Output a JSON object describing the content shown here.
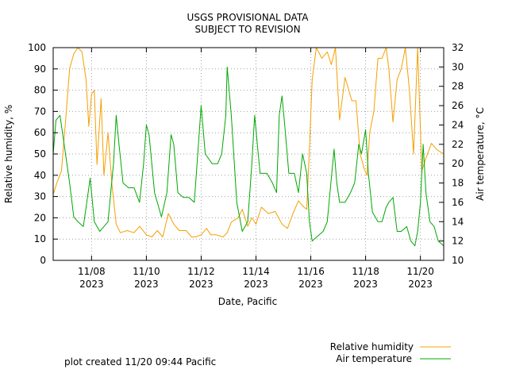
{
  "chart_data": {
    "type": "line",
    "title": "USGS PROVISIONAL DATA",
    "subtitle": "SUBJECT TO REVISION",
    "xlabel": "Date, Pacific",
    "ylabel_left": "Relative humidity, %",
    "ylabel_right": "Air temperature, °C",
    "footer": "plot created 11/20 09:44 Pacific",
    "xlim": [
      6.6,
      20.85
    ],
    "x_ticks": [
      {
        "x": 8,
        "label": "11/08",
        "year": "2023"
      },
      {
        "x": 10,
        "label": "11/10",
        "year": "2023"
      },
      {
        "x": 12,
        "label": "11/12",
        "year": "2023"
      },
      {
        "x": 14,
        "label": "11/14",
        "year": "2023"
      },
      {
        "x": 16,
        "label": "11/16",
        "year": "2023"
      },
      {
        "x": 18,
        "label": "11/18",
        "year": "2023"
      },
      {
        "x": 20,
        "label": "11/20",
        "year": "2023"
      }
    ],
    "ylim_left": [
      0,
      100
    ],
    "yticks_left": [
      0,
      10,
      20,
      30,
      40,
      50,
      60,
      70,
      80,
      90,
      100
    ],
    "ylim_right": [
      10,
      32
    ],
    "yticks_right": [
      10,
      12,
      14,
      16,
      18,
      20,
      22,
      24,
      26,
      28,
      30,
      32
    ],
    "grid": true,
    "legend_position": "bottom-right",
    "series": [
      {
        "name": "Relative humidity",
        "axis": "left",
        "color": "#f5a000",
        "points": [
          [
            6.6,
            31
          ],
          [
            6.75,
            37
          ],
          [
            6.9,
            42
          ],
          [
            7.05,
            65
          ],
          [
            7.2,
            90
          ],
          [
            7.35,
            97
          ],
          [
            7.5,
            100
          ],
          [
            7.65,
            98
          ],
          [
            7.8,
            85
          ],
          [
            7.9,
            63
          ],
          [
            8.0,
            78
          ],
          [
            8.1,
            80
          ],
          [
            8.2,
            45
          ],
          [
            8.35,
            76
          ],
          [
            8.45,
            40
          ],
          [
            8.6,
            60
          ],
          [
            8.75,
            35
          ],
          [
            8.9,
            17
          ],
          [
            9.05,
            13
          ],
          [
            9.3,
            14
          ],
          [
            9.55,
            13
          ],
          [
            9.75,
            16
          ],
          [
            10.0,
            12
          ],
          [
            10.2,
            11
          ],
          [
            10.4,
            14
          ],
          [
            10.6,
            11
          ],
          [
            10.8,
            22
          ],
          [
            11.0,
            17
          ],
          [
            11.2,
            14
          ],
          [
            11.45,
            14
          ],
          [
            11.65,
            11
          ],
          [
            11.8,
            11
          ],
          [
            12.0,
            12
          ],
          [
            12.2,
            15
          ],
          [
            12.35,
            12
          ],
          [
            12.55,
            12
          ],
          [
            12.8,
            11
          ],
          [
            12.95,
            13
          ],
          [
            13.1,
            18
          ],
          [
            13.35,
            20
          ],
          [
            13.5,
            24
          ],
          [
            13.7,
            16
          ],
          [
            13.85,
            20
          ],
          [
            14.0,
            17
          ],
          [
            14.2,
            25
          ],
          [
            14.45,
            22
          ],
          [
            14.7,
            23
          ],
          [
            14.95,
            17
          ],
          [
            15.15,
            15
          ],
          [
            15.35,
            22
          ],
          [
            15.55,
            28
          ],
          [
            15.75,
            25
          ],
          [
            15.85,
            24
          ],
          [
            15.95,
            52
          ],
          [
            16.05,
            85
          ],
          [
            16.2,
            100
          ],
          [
            16.4,
            95
          ],
          [
            16.6,
            98
          ],
          [
            16.75,
            92
          ],
          [
            16.9,
            100
          ],
          [
            17.05,
            66
          ],
          [
            17.25,
            86
          ],
          [
            17.5,
            75
          ],
          [
            17.65,
            75
          ],
          [
            17.8,
            50
          ],
          [
            17.95,
            43
          ],
          [
            18.05,
            40
          ],
          [
            18.15,
            60
          ],
          [
            18.3,
            70
          ],
          [
            18.45,
            95
          ],
          [
            18.6,
            95
          ],
          [
            18.75,
            100
          ],
          [
            18.85,
            90
          ],
          [
            19.0,
            65
          ],
          [
            19.15,
            85
          ],
          [
            19.3,
            90
          ],
          [
            19.45,
            100
          ],
          [
            19.6,
            80
          ],
          [
            19.75,
            50
          ],
          [
            19.9,
            100
          ],
          [
            20.05,
            42
          ],
          [
            20.2,
            48
          ],
          [
            20.4,
            55
          ],
          [
            20.6,
            52
          ],
          [
            20.85,
            50
          ]
        ]
      },
      {
        "name": "Air temperature",
        "axis": "right",
        "color": "#00a800",
        "points": [
          [
            6.6,
            21
          ],
          [
            6.7,
            24.5
          ],
          [
            6.85,
            25
          ],
          [
            7.0,
            22
          ],
          [
            7.2,
            18
          ],
          [
            7.35,
            14.5
          ],
          [
            7.5,
            14
          ],
          [
            7.7,
            13.5
          ],
          [
            7.85,
            16.5
          ],
          [
            7.95,
            18.5
          ],
          [
            8.1,
            14
          ],
          [
            8.3,
            13
          ],
          [
            8.45,
            13.5
          ],
          [
            8.6,
            14
          ],
          [
            8.7,
            17
          ],
          [
            8.8,
            20
          ],
          [
            8.9,
            25
          ],
          [
            9.0,
            22
          ],
          [
            9.15,
            18
          ],
          [
            9.35,
            17.5
          ],
          [
            9.55,
            17.5
          ],
          [
            9.75,
            16
          ],
          [
            9.9,
            20
          ],
          [
            10.0,
            24
          ],
          [
            10.1,
            23
          ],
          [
            10.3,
            17
          ],
          [
            10.55,
            14.5
          ],
          [
            10.75,
            17
          ],
          [
            10.9,
            23
          ],
          [
            11.0,
            22
          ],
          [
            11.15,
            17
          ],
          [
            11.35,
            16.5
          ],
          [
            11.55,
            16.5
          ],
          [
            11.75,
            16
          ],
          [
            11.9,
            22
          ],
          [
            12.0,
            26
          ],
          [
            12.15,
            21
          ],
          [
            12.4,
            20
          ],
          [
            12.6,
            20
          ],
          [
            12.75,
            21
          ],
          [
            12.9,
            25
          ],
          [
            12.95,
            30
          ],
          [
            13.1,
            25
          ],
          [
            13.3,
            16
          ],
          [
            13.5,
            13
          ],
          [
            13.7,
            14
          ],
          [
            13.85,
            20
          ],
          [
            13.95,
            25
          ],
          [
            14.05,
            22
          ],
          [
            14.15,
            19
          ],
          [
            14.4,
            19
          ],
          [
            14.6,
            18
          ],
          [
            14.75,
            17
          ],
          [
            14.85,
            25
          ],
          [
            14.95,
            27
          ],
          [
            15.05,
            24
          ],
          [
            15.2,
            19
          ],
          [
            15.4,
            19
          ],
          [
            15.55,
            17
          ],
          [
            15.7,
            21
          ],
          [
            15.85,
            19
          ],
          [
            15.95,
            14
          ],
          [
            16.05,
            12
          ],
          [
            16.25,
            12.5
          ],
          [
            16.45,
            13
          ],
          [
            16.6,
            14
          ],
          [
            16.7,
            17
          ],
          [
            16.85,
            21.5
          ],
          [
            16.95,
            18
          ],
          [
            17.05,
            16
          ],
          [
            17.25,
            16
          ],
          [
            17.45,
            17
          ],
          [
            17.6,
            18
          ],
          [
            17.75,
            22
          ],
          [
            17.85,
            21
          ],
          [
            18.0,
            23.5
          ],
          [
            18.1,
            19
          ],
          [
            18.25,
            15
          ],
          [
            18.45,
            14
          ],
          [
            18.6,
            14
          ],
          [
            18.75,
            15.5
          ],
          [
            18.85,
            16
          ],
          [
            19.0,
            16.5
          ],
          [
            19.15,
            13
          ],
          [
            19.3,
            13
          ],
          [
            19.5,
            13.5
          ],
          [
            19.65,
            12
          ],
          [
            19.8,
            11.5
          ],
          [
            19.9,
            13
          ],
          [
            20.0,
            16
          ],
          [
            20.1,
            22
          ],
          [
            20.2,
            17
          ],
          [
            20.35,
            14
          ],
          [
            20.5,
            13.5
          ],
          [
            20.65,
            12
          ],
          [
            20.85,
            11.5
          ]
        ]
      }
    ]
  }
}
